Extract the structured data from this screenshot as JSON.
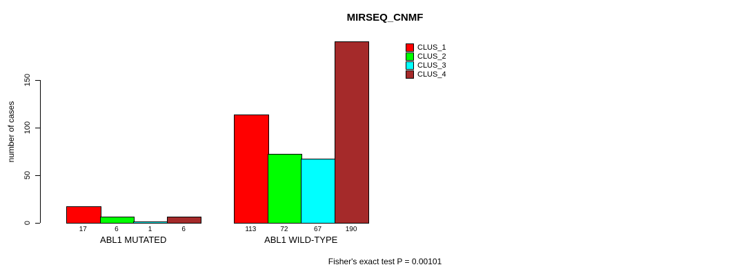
{
  "title": "MIRSEQ_CNMF",
  "y_axis": {
    "label": "number of cases",
    "ticks": [
      "0",
      "50",
      "100",
      "150"
    ]
  },
  "footer": "Fisher's exact test P = 0.00101",
  "legend": {
    "items": [
      {
        "label": "CLUS_1",
        "color": "#FF0000"
      },
      {
        "label": "CLUS_2",
        "color": "#00FF00"
      },
      {
        "label": "CLUS_3",
        "color": "#00FFFF"
      },
      {
        "label": "CLUS_4",
        "color": "#A52A2A"
      }
    ]
  },
  "chart_data": {
    "type": "bar",
    "title": "MIRSEQ_CNMF",
    "ylabel": "number of cases",
    "categories": [
      "ABL1 MUTATED",
      "ABL1 WILD-TYPE"
    ],
    "series": [
      {
        "name": "CLUS_1",
        "color": "#FF0000",
        "values": [
          17,
          113
        ]
      },
      {
        "name": "CLUS_2",
        "color": "#00FF00",
        "values": [
          6,
          72
        ]
      },
      {
        "name": "CLUS_3",
        "color": "#00FFFF",
        "values": [
          1,
          67
        ]
      },
      {
        "name": "CLUS_4",
        "color": "#A52A2A",
        "values": [
          6,
          190
        ]
      }
    ],
    "bar_value_labels": [
      [
        17,
        6,
        1,
        6
      ],
      [
        113,
        72,
        67,
        190
      ]
    ],
    "yticks": [
      0,
      50,
      100,
      150
    ],
    "ylim": [
      0,
      190
    ],
    "grid": false,
    "legend_position": "top-right-inside",
    "annotation": "Fisher's exact test P = 0.00101"
  }
}
